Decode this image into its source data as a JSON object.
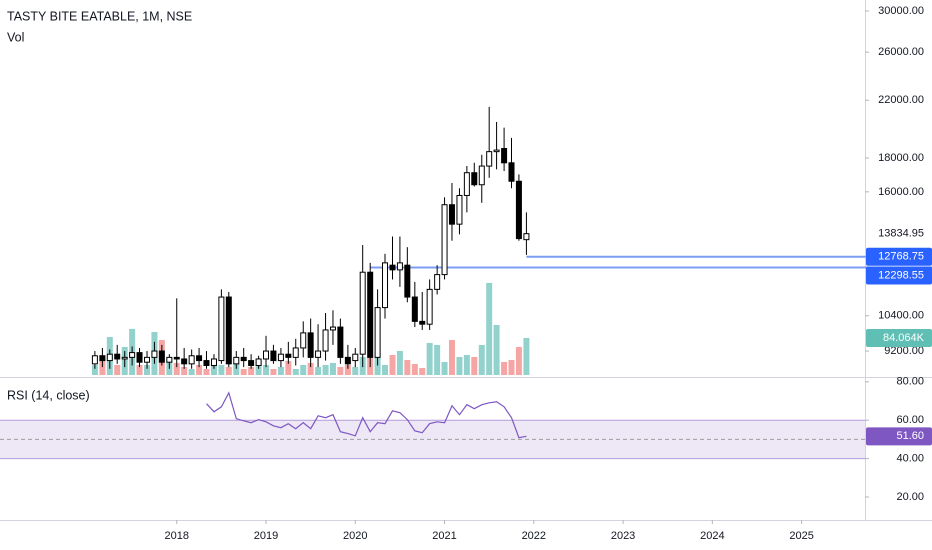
{
  "chart_data": {
    "type": "candlestick",
    "title": "TASTY BITE EATABLE, 1M, NSE",
    "log_scale": true,
    "grid": false,
    "xlim": [
      2016.02,
      2025.71
    ],
    "xticks": [
      2018,
      2019,
      2020,
      2021,
      2022,
      2023,
      2024,
      2025
    ],
    "ylim": [
      8465,
      31170
    ],
    "yticks": [
      {
        "value": 30000,
        "label": "30000.00"
      },
      {
        "value": 26000,
        "label": "26000.00"
      },
      {
        "value": 22000,
        "label": "22000.00"
      },
      {
        "value": 18000,
        "label": "18000.00"
      },
      {
        "value": 16000,
        "label": "16000.00"
      },
      {
        "value": 10400,
        "label": "10400.00"
      },
      {
        "value": 9200,
        "label": "9200.00"
      }
    ],
    "up_color": "#ffffff",
    "down_color": "#000000",
    "outline_color": "#000000",
    "x": [
      2017.083,
      2017.167,
      2017.25,
      2017.333,
      2017.417,
      2017.5,
      2017.583,
      2017.667,
      2017.75,
      2017.833,
      2017.917,
      2018.0,
      2018.083,
      2018.167,
      2018.25,
      2018.333,
      2018.417,
      2018.5,
      2018.583,
      2018.667,
      2018.75,
      2018.833,
      2018.917,
      2019.0,
      2019.083,
      2019.167,
      2019.25,
      2019.333,
      2019.417,
      2019.5,
      2019.583,
      2019.667,
      2019.75,
      2019.833,
      2019.917,
      2020.0,
      2020.083,
      2020.167,
      2020.25,
      2020.333,
      2020.417,
      2020.5,
      2020.583,
      2020.667,
      2020.75,
      2020.833,
      2020.917,
      2021.0,
      2021.083,
      2021.167,
      2021.25,
      2021.333,
      2021.417,
      2021.5,
      2021.583,
      2021.667,
      2021.75,
      2021.833,
      2021.917
    ],
    "open": [
      8800,
      9050,
      8900,
      9100,
      8950,
      9000,
      9150,
      8850,
      9000,
      9200,
      8850,
      9000,
      8950,
      8800,
      9050,
      8900,
      8750,
      8900,
      11100,
      8800,
      9000,
      8900,
      8750,
      8950,
      9200,
      8900,
      9100,
      9000,
      9300,
      9800,
      9000,
      9200,
      9900,
      10000,
      9000,
      8900,
      9100,
      12100,
      9000,
      10700,
      12400,
      12200,
      12400,
      11100,
      10200,
      10100,
      11400,
      12000,
      15300,
      14300,
      15800,
      17100,
      16400,
      17500,
      18400,
      18600,
      17700,
      16600,
      13550
    ],
    "high": [
      9200,
      9300,
      9250,
      9400,
      9200,
      9350,
      9300,
      9200,
      9500,
      9400,
      9100,
      11050,
      9300,
      9250,
      9300,
      9200,
      9100,
      11400,
      11300,
      9200,
      9300,
      9100,
      9050,
      9700,
      9400,
      9300,
      9500,
      9600,
      10200,
      10300,
      10100,
      10500,
      10600,
      10300,
      9400,
      9300,
      13300,
      12500,
      11400,
      12900,
      13700,
      13700,
      13200,
      11700,
      11300,
      11800,
      12400,
      15700,
      16500,
      16200,
      17500,
      17700,
      18200,
      21500,
      20400,
      20000,
      19300,
      17000,
      14900
    ],
    "low": [
      8650,
      8700,
      8650,
      8800,
      8700,
      8750,
      8700,
      8650,
      8800,
      8750,
      8650,
      8700,
      8650,
      8650,
      8700,
      8650,
      8650,
      8800,
      8700,
      8650,
      8700,
      8650,
      8650,
      8700,
      8800,
      8700,
      8800,
      8750,
      9000,
      8700,
      8700,
      8900,
      9400,
      8800,
      8650,
      8700,
      8700,
      8700,
      8750,
      10300,
      11800,
      11500,
      10900,
      10000,
      9900,
      9900,
      11200,
      11800,
      13500,
      13800,
      14900,
      16300,
      15400,
      16800,
      17300,
      17200,
      16200,
      13500,
      12850
    ],
    "close": [
      9050,
      8900,
      9100,
      8950,
      9000,
      9150,
      8850,
      9000,
      9200,
      8850,
      9000,
      8950,
      8800,
      9050,
      8900,
      8750,
      8950,
      11100,
      8800,
      9000,
      8900,
      8750,
      8950,
      9200,
      8900,
      9100,
      9000,
      9300,
      9800,
      9000,
      9200,
      9900,
      10000,
      9000,
      8800,
      9100,
      12100,
      9000,
      10700,
      12500,
      12200,
      12500,
      11100,
      10200,
      10100,
      11400,
      12000,
      15300,
      14300,
      15800,
      17100,
      16400,
      17500,
      18400,
      18500,
      17700,
      16600,
      13600,
      13834.95
    ],
    "levels": [
      {
        "value": 12768.75,
        "x_start": 2021.917
      },
      {
        "value": 12298.55,
        "x_start": 2020.167
      }
    ],
    "level_color": "#7c9ef2",
    "level_label_color": "#2962ff",
    "volume": {
      "name": "Vol",
      "ylim": [
        0,
        420000
      ],
      "up_color": "#93d2cc",
      "down_color": "#f5a6a4",
      "label_color": "#5fbfb4",
      "values": [
        22700,
        45400,
        86300,
        22700,
        63600,
        104500,
        22700,
        22700,
        97700,
        79500,
        40900,
        27300,
        18200,
        13600,
        22700,
        13600,
        31800,
        22700,
        18200,
        27300,
        13600,
        18200,
        31800,
        22700,
        13600,
        18200,
        31800,
        13600,
        22700,
        27300,
        18200,
        22700,
        27300,
        18200,
        22700,
        18200,
        40900,
        45400,
        50000,
        22700,
        45400,
        54500,
        34100,
        25000,
        15900,
        72700,
        68200,
        29500,
        79500,
        40900,
        45400,
        40900,
        68200,
        209000,
        113600,
        29500,
        34100,
        63600,
        84064
      ],
      "value_label": "84.064K"
    },
    "rsi": {
      "name": "RSI (14, close)",
      "color": "#7e57c2",
      "band_color": "#ede7f6",
      "ylim": [
        8,
        82
      ],
      "yticks": [
        {
          "value": 80,
          "label": "80.00"
        },
        {
          "value": 60,
          "label": "60.00"
        },
        {
          "value": 40,
          "label": "40.00"
        },
        {
          "value": 20,
          "label": "20.00"
        }
      ],
      "band": [
        40,
        60
      ],
      "midline": 50,
      "values": [
        null,
        null,
        null,
        null,
        null,
        null,
        null,
        null,
        null,
        null,
        null,
        null,
        null,
        null,
        null,
        68.6,
        64.4,
        67.0,
        74.3,
        60.8,
        59.7,
        58.7,
        60.3,
        59.2,
        57.1,
        56.1,
        58.2,
        55.6,
        58.7,
        55.6,
        62.3,
        61.3,
        62.9,
        54.0,
        53.0,
        51.9,
        61.3,
        54.0,
        58.7,
        58.2,
        64.9,
        63.9,
        60.3,
        54.5,
        53.5,
        58.2,
        59.2,
        58.7,
        67.5,
        62.9,
        68.1,
        66.0,
        68.1,
        69.1,
        69.6,
        67.0,
        61.3,
        50.9,
        51.6
      ],
      "value_label": "51.60"
    }
  }
}
